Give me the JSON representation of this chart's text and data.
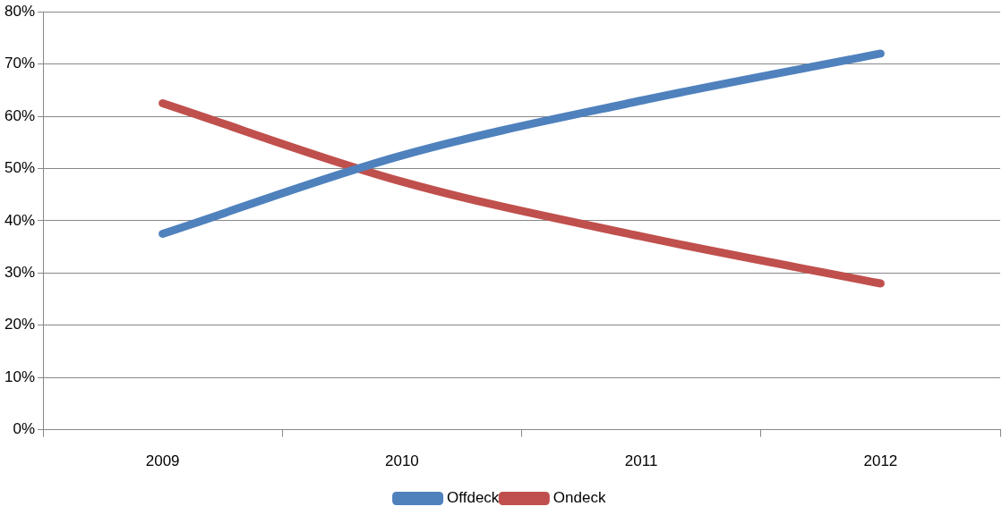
{
  "chart_data": {
    "type": "line",
    "categories": [
      "2009",
      "2010",
      "2011",
      "2012"
    ],
    "series": [
      {
        "name": "Offdeck",
        "color": "#4f81bd",
        "values": [
          37.5,
          52.5,
          63,
          72
        ]
      },
      {
        "name": "Ondeck",
        "color": "#c0504d",
        "values": [
          62.5,
          47.5,
          37,
          28
        ]
      }
    ],
    "ylim": [
      0,
      80
    ],
    "yticks": [
      {
        "value": 0,
        "label": "0%"
      },
      {
        "value": 10,
        "label": "10%"
      },
      {
        "value": 20,
        "label": "20%"
      },
      {
        "value": 30,
        "label": "30%"
      },
      {
        "value": 40,
        "label": "40%"
      },
      {
        "value": 50,
        "label": "50%"
      },
      {
        "value": 60,
        "label": "60%"
      },
      {
        "value": 70,
        "label": "70%"
      },
      {
        "value": 80,
        "label": "80%"
      }
    ],
    "grid": "y",
    "legend": "bottom",
    "marker": "none",
    "line_style": "solid"
  }
}
